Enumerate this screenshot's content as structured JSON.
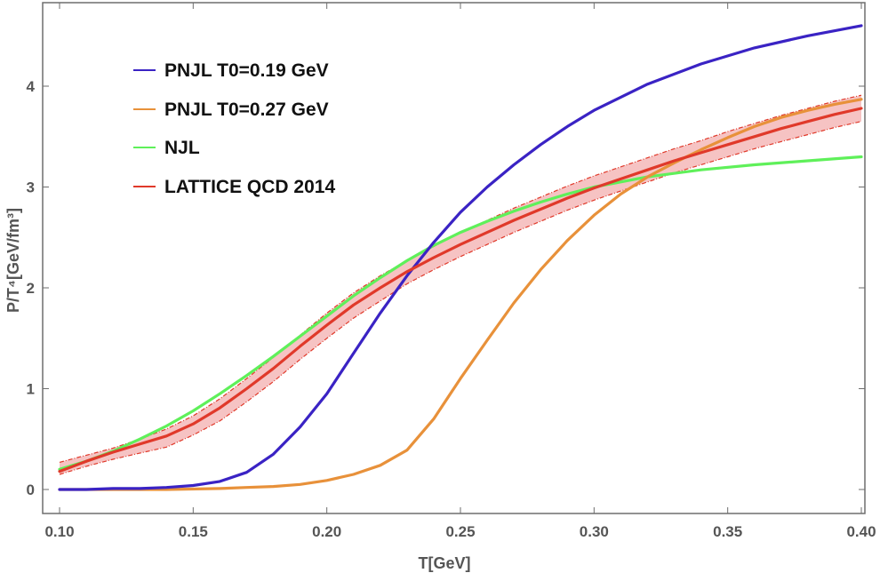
{
  "chart_data": {
    "type": "line",
    "title": "",
    "xlabel": "T[GeV]",
    "ylabel": "P/T⁴[GeV/fm³]",
    "xlim": [
      0.1,
      0.4
    ],
    "ylim": [
      -0.25,
      4.85
    ],
    "x_ticks": [
      0.1,
      0.15,
      0.2,
      0.25,
      0.3,
      0.35,
      0.4
    ],
    "x_tick_labels": [
      "0.10",
      "0.15",
      "0.20",
      "0.25",
      "0.30",
      "0.35",
      "0.40"
    ],
    "y_ticks": [
      0,
      1,
      2,
      3,
      4
    ],
    "y_tick_labels": [
      "0",
      "1",
      "2",
      "3",
      "4"
    ],
    "grid": false,
    "legend_position": "top-left",
    "series": [
      {
        "name": "PNJL T0=0.19 GeV",
        "color": "#3a23c4",
        "x": [
          0.1,
          0.11,
          0.12,
          0.13,
          0.14,
          0.15,
          0.16,
          0.17,
          0.18,
          0.19,
          0.2,
          0.21,
          0.22,
          0.23,
          0.24,
          0.25,
          0.26,
          0.27,
          0.28,
          0.29,
          0.3,
          0.32,
          0.34,
          0.36,
          0.38,
          0.4
        ],
        "y": [
          0.0,
          0.0,
          0.01,
          0.01,
          0.02,
          0.04,
          0.08,
          0.17,
          0.35,
          0.62,
          0.95,
          1.35,
          1.75,
          2.12,
          2.45,
          2.75,
          3.0,
          3.22,
          3.42,
          3.6,
          3.76,
          4.02,
          4.22,
          4.38,
          4.5,
          4.6
        ]
      },
      {
        "name": "PNJL T0=0.27 GeV",
        "color": "#e8913a",
        "x": [
          0.1,
          0.12,
          0.14,
          0.16,
          0.17,
          0.18,
          0.19,
          0.2,
          0.21,
          0.22,
          0.23,
          0.24,
          0.25,
          0.26,
          0.27,
          0.28,
          0.29,
          0.3,
          0.31,
          0.32,
          0.33,
          0.34,
          0.35,
          0.36,
          0.37,
          0.38,
          0.39,
          0.4
        ],
        "y": [
          0.0,
          0.0,
          0.0,
          0.01,
          0.02,
          0.03,
          0.05,
          0.09,
          0.15,
          0.24,
          0.39,
          0.7,
          1.1,
          1.48,
          1.85,
          2.18,
          2.47,
          2.72,
          2.93,
          3.1,
          3.24,
          3.37,
          3.49,
          3.6,
          3.69,
          3.76,
          3.82,
          3.87
        ]
      },
      {
        "name": "NJL",
        "color": "#5ff05a",
        "x": [
          0.1,
          0.11,
          0.12,
          0.13,
          0.14,
          0.15,
          0.16,
          0.17,
          0.18,
          0.19,
          0.2,
          0.21,
          0.22,
          0.23,
          0.24,
          0.25,
          0.26,
          0.27,
          0.28,
          0.29,
          0.3,
          0.32,
          0.34,
          0.36,
          0.38,
          0.4
        ],
        "y": [
          0.2,
          0.28,
          0.38,
          0.5,
          0.63,
          0.78,
          0.95,
          1.13,
          1.32,
          1.52,
          1.72,
          1.92,
          2.1,
          2.27,
          2.42,
          2.55,
          2.66,
          2.76,
          2.85,
          2.93,
          3.0,
          3.1,
          3.17,
          3.22,
          3.26,
          3.3
        ]
      },
      {
        "name": "LATTICE QCD 2014",
        "color": "#e0392a",
        "band_color": "#f4b9b9",
        "x": [
          0.1,
          0.11,
          0.12,
          0.13,
          0.14,
          0.15,
          0.16,
          0.17,
          0.18,
          0.19,
          0.2,
          0.21,
          0.22,
          0.23,
          0.24,
          0.25,
          0.26,
          0.27,
          0.28,
          0.29,
          0.3,
          0.31,
          0.32,
          0.33,
          0.34,
          0.35,
          0.36,
          0.37,
          0.38,
          0.39,
          0.4
        ],
        "y": [
          0.18,
          0.28,
          0.37,
          0.45,
          0.53,
          0.65,
          0.81,
          1.0,
          1.2,
          1.42,
          1.63,
          1.83,
          2.0,
          2.16,
          2.3,
          2.43,
          2.55,
          2.67,
          2.78,
          2.89,
          2.99,
          3.08,
          3.17,
          3.26,
          3.34,
          3.42,
          3.5,
          3.58,
          3.65,
          3.72,
          3.78
        ],
        "y_upper": [
          0.27,
          0.34,
          0.41,
          0.5,
          0.6,
          0.73,
          0.9,
          1.1,
          1.31,
          1.53,
          1.75,
          1.95,
          2.12,
          2.27,
          2.41,
          2.55,
          2.67,
          2.79,
          2.9,
          3.01,
          3.11,
          3.2,
          3.29,
          3.38,
          3.46,
          3.55,
          3.63,
          3.71,
          3.78,
          3.85,
          3.91
        ],
        "y_lower": [
          0.15,
          0.23,
          0.3,
          0.36,
          0.42,
          0.54,
          0.68,
          0.87,
          1.07,
          1.29,
          1.5,
          1.7,
          1.87,
          2.04,
          2.18,
          2.31,
          2.43,
          2.55,
          2.66,
          2.77,
          2.87,
          2.96,
          3.05,
          3.14,
          3.22,
          3.3,
          3.38,
          3.45,
          3.52,
          3.59,
          3.65
        ]
      }
    ]
  }
}
